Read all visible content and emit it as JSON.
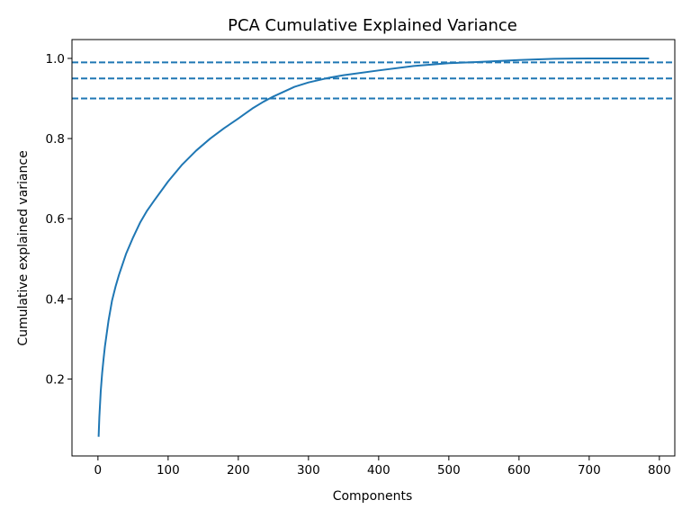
{
  "chart_data": {
    "type": "line",
    "title": "PCA Cumulative Explained Variance",
    "xlabel": "Components",
    "ylabel": "Cumulative explained variance",
    "xlim": [
      -37,
      822
    ],
    "ylim": [
      0.008,
      1.047
    ],
    "x_ticks": [
      0,
      100,
      200,
      300,
      400,
      500,
      600,
      700,
      800
    ],
    "y_ticks": [
      0.2,
      0.4,
      0.6,
      0.8,
      1.0
    ],
    "x_tick_labels": [
      "0",
      "100",
      "200",
      "300",
      "400",
      "500",
      "600",
      "700",
      "800"
    ],
    "y_tick_labels": [
      "0.2",
      "0.4",
      "0.6",
      "0.8",
      "1.0"
    ],
    "grid": false,
    "series": [
      {
        "color": "#1f77b4",
        "x": [
          1,
          2,
          4,
          6,
          8,
          10,
          15,
          20,
          25,
          30,
          40,
          50,
          60,
          70,
          80,
          100,
          120,
          140,
          160,
          180,
          200,
          220,
          236,
          250,
          280,
          300,
          330,
          350,
          400,
          450,
          500,
          540,
          600,
          650,
          700,
          750,
          784
        ],
        "y": [
          0.058,
          0.105,
          0.17,
          0.215,
          0.25,
          0.282,
          0.345,
          0.395,
          0.43,
          0.46,
          0.512,
          0.553,
          0.59,
          0.62,
          0.645,
          0.693,
          0.735,
          0.77,
          0.8,
          0.826,
          0.85,
          0.875,
          0.892,
          0.905,
          0.929,
          0.94,
          0.952,
          0.958,
          0.97,
          0.981,
          0.988,
          0.991,
          0.996,
          0.999,
          1.0,
          1.0,
          1.0
        ]
      }
    ],
    "reference_lines": [
      {
        "axis": "y",
        "value": 0.99,
        "style": "dashed",
        "color": "#1f77b4"
      },
      {
        "axis": "y",
        "value": 0.95,
        "style": "dashed",
        "color": "#1f77b4"
      },
      {
        "axis": "y",
        "value": 0.9,
        "style": "dashed",
        "color": "#1f77b4"
      }
    ]
  }
}
